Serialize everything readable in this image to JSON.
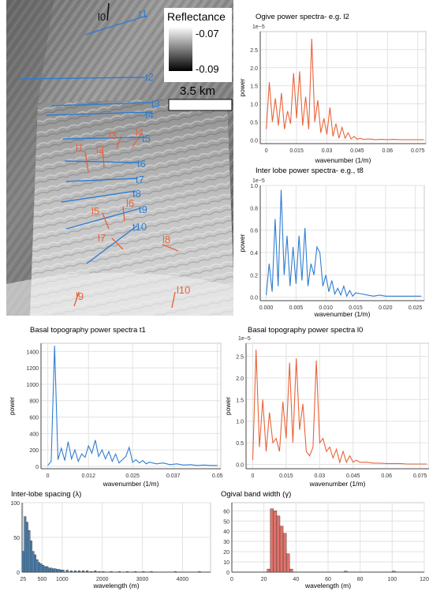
{
  "map": {
    "colorbar_title": "Reflectance",
    "colorbar_max": "-0.07",
    "colorbar_min": "-0.09",
    "scale_label": "3.5 km",
    "profiles": [
      {
        "label": "l0",
        "kind": "lobe"
      },
      {
        "label": "t1",
        "kind": "transect"
      },
      {
        "label": "t2",
        "kind": "transect"
      },
      {
        "label": "t3",
        "kind": "transect"
      },
      {
        "label": "t4",
        "kind": "transect"
      },
      {
        "label": "l4",
        "kind": "ogive"
      },
      {
        "label": "l3",
        "kind": "ogive"
      },
      {
        "label": "t5",
        "kind": "transect"
      },
      {
        "label": "l1",
        "kind": "ogive"
      },
      {
        "label": "l2",
        "kind": "ogive"
      },
      {
        "label": "t6",
        "kind": "transect"
      },
      {
        "label": "t7",
        "kind": "transect"
      },
      {
        "label": "t8",
        "kind": "transect"
      },
      {
        "label": "l6",
        "kind": "ogive"
      },
      {
        "label": "t9",
        "kind": "transect"
      },
      {
        "label": "l5",
        "kind": "ogive"
      },
      {
        "label": "t10",
        "kind": "transect"
      },
      {
        "label": "l7",
        "kind": "ogive"
      },
      {
        "label": "l8",
        "kind": "ogive"
      },
      {
        "label": "l10",
        "kind": "ogive"
      },
      {
        "label": "l9",
        "kind": "ogive"
      }
    ],
    "colors": {
      "transect": "#2f7dd1",
      "ogive": "#e8643a",
      "lobe": "#111111"
    }
  },
  "chart_data": [
    {
      "id": "c1",
      "type": "line",
      "title": "Ogive power spectra- e.g. l2",
      "xlabel": "wavenumber (1/m)",
      "ylabel": "power",
      "exponent_label": "1e−5",
      "xlim": [
        -0.003,
        0.079
      ],
      "ylim": [
        -0.1,
        3.0
      ],
      "xticks": [
        0,
        0.015,
        0.03,
        0.045,
        0.06,
        0.075
      ],
      "xtick_labels": [
        "0",
        "0.015",
        "0.03",
        "0.045",
        "0.06",
        "0.075"
      ],
      "yticks": [
        0,
        0.5,
        1.0,
        1.5,
        2.0,
        2.5
      ],
      "ytick_labels": [
        "0.0",
        "0.5",
        "1.0",
        "1.5",
        "2.0",
        "2.5"
      ],
      "grid": true,
      "color": "#e8643a",
      "x": [
        0,
        0.0015,
        0.003,
        0.0045,
        0.006,
        0.0075,
        0.009,
        0.0105,
        0.012,
        0.0135,
        0.015,
        0.0165,
        0.018,
        0.0195,
        0.021,
        0.0225,
        0.024,
        0.0255,
        0.027,
        0.0285,
        0.03,
        0.0315,
        0.033,
        0.0345,
        0.036,
        0.0375,
        0.039,
        0.0405,
        0.042,
        0.0435,
        0.045,
        0.0465,
        0.048,
        0.051,
        0.054,
        0.057,
        0.06,
        0.063,
        0.066,
        0.069,
        0.072,
        0.075,
        0.078
      ],
      "y": [
        0.3,
        1.6,
        0.5,
        1.15,
        0.4,
        1.3,
        0.3,
        0.8,
        0.45,
        1.85,
        0.6,
        1.9,
        0.4,
        1.2,
        0.3,
        2.8,
        0.5,
        1.1,
        0.2,
        0.6,
        0.15,
        0.9,
        0.1,
        0.45,
        0.05,
        0.35,
        0.05,
        0.2,
        0.03,
        0.1,
        0.02,
        0.05,
        0.02,
        0.03,
        0.01,
        0.02,
        0.01,
        0.02,
        0.01,
        0.01,
        0.01,
        0.01,
        0.01
      ]
    },
    {
      "id": "c2",
      "type": "line",
      "title": "Inter lobe power spectra- e.g., t8",
      "xlabel": "wavenumber (1/m)",
      "ylabel": "power",
      "exponent_label": "1e−5",
      "xlim": [
        -0.001,
        0.0265
      ],
      "ylim": [
        -0.03,
        1.0
      ],
      "xticks": [
        0,
        0.005,
        0.01,
        0.015,
        0.02,
        0.025
      ],
      "xtick_labels": [
        "0.000",
        "0.005",
        "0.010",
        "0.015",
        "0.020",
        "0.025"
      ],
      "yticks": [
        0,
        0.2,
        0.4,
        0.6,
        0.8,
        1.0
      ],
      "ytick_labels": [
        "0.0",
        "0.2",
        "0.4",
        "0.6",
        "0.8",
        "1.0"
      ],
      "grid": true,
      "color": "#2f7dd1",
      "x": [
        0,
        0.0005,
        0.001,
        0.0015,
        0.002,
        0.0025,
        0.003,
        0.0035,
        0.004,
        0.0045,
        0.005,
        0.0055,
        0.006,
        0.0065,
        0.007,
        0.0075,
        0.008,
        0.0085,
        0.009,
        0.0095,
        0.01,
        0.0105,
        0.011,
        0.0115,
        0.012,
        0.0125,
        0.013,
        0.0135,
        0.014,
        0.0145,
        0.015,
        0.016,
        0.017,
        0.018,
        0.019,
        0.02,
        0.021,
        0.022,
        0.023,
        0.024,
        0.025,
        0.026
      ],
      "y": [
        0.02,
        0.3,
        0.05,
        0.7,
        0.1,
        0.96,
        0.2,
        0.55,
        0.1,
        0.45,
        0.12,
        0.55,
        0.15,
        0.62,
        0.1,
        0.3,
        0.2,
        0.45,
        0.4,
        0.1,
        0.2,
        0.05,
        0.15,
        0.03,
        0.08,
        0.02,
        0.1,
        0.01,
        0.06,
        0.01,
        0.04,
        0.03,
        0.02,
        0.01,
        0.02,
        0.01,
        0.01,
        0.01,
        0.01,
        0.01,
        0.01,
        0.01
      ]
    },
    {
      "id": "c3",
      "type": "line",
      "title": "Basal  topography power spectra t1",
      "xlabel": "wavenumber (1/m)",
      "ylabel": "power",
      "exponent_label": "",
      "xlim": [
        -0.002,
        0.051
      ],
      "ylim": [
        -30,
        1500
      ],
      "xticks": [
        0,
        0.012,
        0.025,
        0.037,
        0.05
      ],
      "xtick_labels": [
        "0",
        "0.012",
        "0.025",
        "0.037",
        "0.05"
      ],
      "yticks": [
        0,
        200,
        400,
        600,
        800,
        1000,
        1200,
        1400
      ],
      "ytick_labels": [
        "0",
        "200",
        "400",
        "600",
        "800",
        "1000",
        "1200",
        "1400"
      ],
      "grid": true,
      "color": "#2f7dd1",
      "x": [
        0,
        0.001,
        0.002,
        0.003,
        0.004,
        0.005,
        0.006,
        0.007,
        0.008,
        0.009,
        0.01,
        0.011,
        0.012,
        0.013,
        0.014,
        0.015,
        0.016,
        0.017,
        0.018,
        0.019,
        0.02,
        0.021,
        0.022,
        0.023,
        0.024,
        0.025,
        0.026,
        0.027,
        0.028,
        0.029,
        0.03,
        0.032,
        0.034,
        0.036,
        0.038,
        0.04,
        0.042,
        0.044,
        0.046,
        0.048,
        0.05
      ],
      "y": [
        10,
        60,
        1470,
        80,
        220,
        70,
        300,
        90,
        200,
        60,
        150,
        110,
        250,
        160,
        320,
        120,
        200,
        90,
        180,
        60,
        150,
        40,
        80,
        120,
        230,
        50,
        80,
        40,
        70,
        30,
        50,
        30,
        40,
        20,
        30,
        15,
        20,
        10,
        15,
        10,
        10
      ]
    },
    {
      "id": "c4",
      "type": "line",
      "title": "Basal topography power spectra l0",
      "xlabel": "wavenumber (1/m)",
      "ylabel": "power",
      "exponent_label": "1e−5",
      "xlim": [
        -0.003,
        0.079
      ],
      "ylim": [
        -0.1,
        2.8
      ],
      "xticks": [
        0,
        0.015,
        0.03,
        0.045,
        0.06,
        0.075
      ],
      "xtick_labels": [
        "0",
        "0.015",
        "0.03",
        "0.045",
        "0.06",
        "0.075"
      ],
      "yticks": [
        0,
        0.5,
        1.0,
        1.5,
        2.0,
        2.5
      ],
      "ytick_labels": [
        "0.0",
        "0.5",
        "1.0",
        "1.5",
        "2.0",
        "2.5"
      ],
      "grid": true,
      "color": "#e8643a",
      "x": [
        0,
        0.0015,
        0.003,
        0.0045,
        0.006,
        0.0075,
        0.009,
        0.0105,
        0.012,
        0.0135,
        0.015,
        0.0165,
        0.018,
        0.0195,
        0.021,
        0.0225,
        0.024,
        0.0255,
        0.027,
        0.0285,
        0.03,
        0.0315,
        0.033,
        0.0345,
        0.036,
        0.0375,
        0.039,
        0.0405,
        0.042,
        0.0435,
        0.045,
        0.0465,
        0.048,
        0.051,
        0.054,
        0.057,
        0.06,
        0.063,
        0.066,
        0.069,
        0.072,
        0.075,
        0.078
      ],
      "y": [
        0.1,
        2.65,
        0.4,
        1.5,
        0.3,
        1.2,
        0.5,
        0.6,
        0.3,
        1.45,
        0.6,
        2.35,
        0.5,
        2.45,
        0.8,
        1.4,
        0.3,
        0.2,
        0.4,
        2.4,
        0.5,
        0.6,
        0.3,
        0.4,
        0.15,
        0.35,
        0.05,
        0.3,
        0.05,
        0.2,
        0.05,
        0.1,
        0.05,
        0.05,
        0.03,
        0.03,
        0.02,
        0.02,
        0.02,
        0.01,
        0.01,
        0.01,
        0.01
      ]
    },
    {
      "id": "c5",
      "type": "bar",
      "title": "Inter-lobe spacing (λ)",
      "xlabel": "wavelength (m)",
      "ylabel": "",
      "exponent_label": "",
      "xlim": [
        0,
        4700
      ],
      "ylim": [
        0,
        100
      ],
      "xticks": [
        25,
        500,
        1000,
        2000,
        3000,
        4000
      ],
      "xtick_labels": [
        "25",
        "500",
        "1000",
        "2000",
        "3000",
        "4000"
      ],
      "yticks": [
        0,
        50,
        100
      ],
      "ytick_labels": [
        "0",
        "50",
        "100"
      ],
      "grid": true,
      "color": "#4c86b8",
      "bin_width": 50,
      "bins_start": [
        0,
        50,
        100,
        150,
        200,
        250,
        300,
        350,
        400,
        450,
        500,
        550,
        600,
        650,
        700,
        750,
        800,
        850,
        900,
        950,
        1000,
        1100,
        1200,
        1300,
        1400,
        1500,
        1600,
        1700,
        1800,
        1900,
        2000,
        2200,
        2400,
        2600,
        2800,
        3000,
        3200,
        3500,
        3800,
        4100,
        4400
      ],
      "counts": [
        30,
        80,
        72,
        60,
        45,
        30,
        25,
        18,
        14,
        12,
        10,
        8,
        8,
        6,
        6,
        5,
        5,
        4,
        4,
        3,
        3,
        3,
        2,
        2,
        2,
        2,
        2,
        1,
        2,
        1,
        1,
        1,
        1,
        1,
        1,
        1,
        1,
        0,
        1,
        0,
        1
      ]
    },
    {
      "id": "c6",
      "type": "bar",
      "title": "Ogival band width (γ)",
      "xlabel": "wavelength (m)",
      "ylabel": "",
      "exponent_label": "",
      "xlim": [
        0,
        120
      ],
      "ylim": [
        0,
        68
      ],
      "xticks": [
        0,
        20,
        40,
        60,
        80,
        100,
        120
      ],
      "xtick_labels": [
        "0",
        "20",
        "40",
        "60",
        "80",
        "100",
        "120"
      ],
      "yticks": [
        0,
        10,
        20,
        30,
        40,
        50,
        60
      ],
      "ytick_labels": [
        "0",
        "10",
        "20",
        "30",
        "40",
        "50",
        "60"
      ],
      "grid": true,
      "color": "#e0736b",
      "bin_width": 2,
      "bins_start": [
        22,
        24,
        26,
        28,
        30,
        32,
        34,
        36,
        70,
        100
      ],
      "counts": [
        3,
        62,
        60,
        55,
        45,
        38,
        18,
        3,
        1,
        1
      ]
    }
  ]
}
